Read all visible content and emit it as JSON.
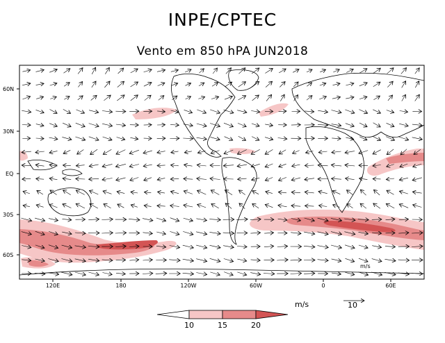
{
  "header": {
    "title": "INPE/CPTEC",
    "subtitle": "Vento em 850 hPA JUN2018"
  },
  "map": {
    "lat_ticks": [
      "60N",
      "30N",
      "EQ",
      "30S",
      "60S"
    ],
    "lon_ticks": [
      "120E",
      "180",
      "120W",
      "60W",
      "0",
      "60E"
    ],
    "units_label": "m/s",
    "ref_vector_label": "10"
  },
  "legend": {
    "units": "m/s",
    "thresholds": [
      "10",
      "15",
      "20"
    ],
    "colors": [
      "#ffffff",
      "#f6c6c6",
      "#e68a8a",
      "#d35454"
    ]
  },
  "colors": {
    "shade_light": "#f6c6c6",
    "shade_mid": "#e68a8a",
    "shade_dark": "#d35454",
    "frame": "#000000"
  }
}
